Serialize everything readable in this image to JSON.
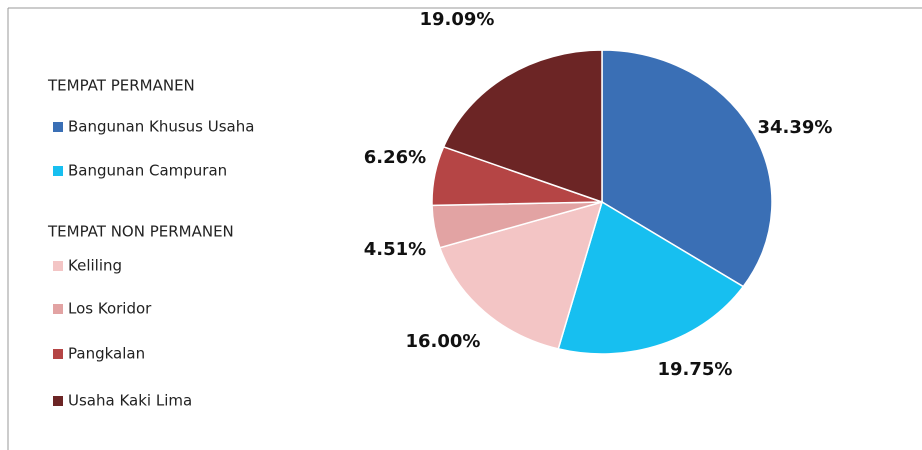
{
  "chart_data": {
    "type": "pie",
    "legend_headings": [
      "TEMPAT PERMANEN",
      "TEMPAT NON PERMANEN"
    ],
    "categories": [
      "Bangunan Khusus Usaha",
      "Bangunan Campuran",
      "Keliling",
      "Los Koridor",
      "Pangkalan",
      "Usaha Kaki Lima"
    ],
    "values": [
      34.39,
      19.75,
      16.0,
      4.51,
      6.26,
      19.09
    ],
    "value_labels": [
      "34.39%",
      "19.75%",
      "16.00%",
      "4.51%",
      "6.26%",
      "19.09%"
    ],
    "colors": [
      "#3a6fb5",
      "#17bff0",
      "#f3c5c5",
      "#e2a3a3",
      "#b54545",
      "#6c2525"
    ],
    "legend": "left"
  }
}
